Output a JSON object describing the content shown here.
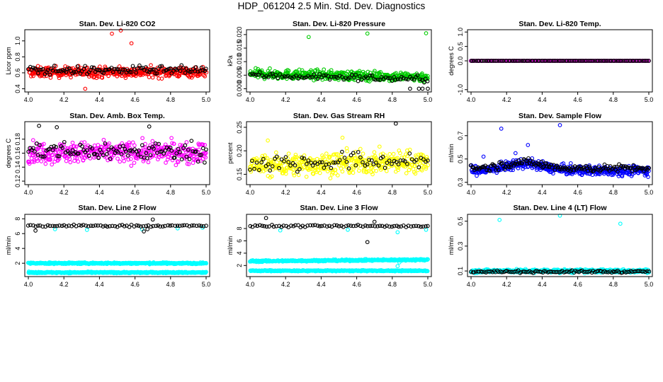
{
  "title": "HDP_061204  2.5 Min. Std. Dev. Diagnostics",
  "chart_data": [
    {
      "id": "co2",
      "type": "scatter",
      "title": "Stan. Dev. Li-820 CO2",
      "ylabel": "Licor ppm",
      "xlabel": "",
      "xlim": [
        3.98,
        5.02
      ],
      "ylim": [
        0.36,
        1.14
      ],
      "xticks": [
        4.0,
        4.2,
        4.4,
        4.6,
        4.8,
        5.0
      ],
      "xtick_labels": [
        "4.0",
        "4.2",
        "4.4",
        "4.6",
        "4.8",
        "5.0"
      ],
      "yticks": [
        0.4,
        0.6,
        0.8,
        1.0
      ],
      "ytick_labels": [
        "0.4",
        "0.6",
        "0.8",
        "1.0"
      ],
      "series": [
        {
          "name": "main",
          "color": "#ff0000",
          "n": 420,
          "base": 0.61,
          "slope": 0,
          "spread": 0.16,
          "outliers": [
            [
              4.47,
              1.09
            ],
            [
              4.52,
              1.13
            ],
            [
              4.58,
              0.97
            ],
            [
              4.32,
              0.4
            ]
          ]
        },
        {
          "name": "reference",
          "color": "#000000",
          "n": 110,
          "base": 0.63,
          "slope": 0,
          "spread": 0.13
        }
      ]
    },
    {
      "id": "pressure",
      "type": "scatter",
      "title": "Stan. Dev. Li-820 Pressure",
      "ylabel": "kPa",
      "xlabel": "",
      "xlim": [
        3.98,
        5.02
      ],
      "ylim": [
        -0.0012,
        0.0218
      ],
      "xticks": [
        4.0,
        4.2,
        4.4,
        4.6,
        4.8,
        5.0
      ],
      "xtick_labels": [
        "4.0",
        "4.2",
        "4.4",
        "4.6",
        "4.8",
        "5.0"
      ],
      "yticks": [
        0.0,
        0.005,
        0.01,
        0.015,
        0.02
      ],
      "ytick_labels": [
        "0.000",
        "0.005",
        "0.010",
        "0.015",
        "0.020"
      ],
      "series": [
        {
          "name": "main",
          "color": "#00cc00",
          "n": 440,
          "base": 0.0055,
          "slope": -0.0012,
          "spread": 0.0042,
          "outliers": [
            [
              4.33,
              0.0191
            ],
            [
              4.66,
              0.0204
            ],
            [
              4.99,
              0.0205
            ]
          ]
        },
        {
          "name": "reference",
          "color": "#000000",
          "n": 90,
          "base": 0.005,
          "slope": -0.0015,
          "spread": 0.003,
          "outliers": [
            [
              4.9,
              0.0
            ],
            [
              4.95,
              0.0
            ],
            [
              4.97,
              0.0
            ],
            [
              5.0,
              0.0
            ]
          ]
        }
      ]
    },
    {
      "id": "temp",
      "type": "scatter",
      "title": "Stan. Dev. Li-820 Temp.",
      "ylabel": "degrees C",
      "xlabel": "",
      "xlim": [
        3.98,
        5.02
      ],
      "ylim": [
        -1.08,
        1.08
      ],
      "xticks": [
        4.0,
        4.2,
        4.4,
        4.6,
        4.8,
        5.0
      ],
      "xtick_labels": [
        "4.0",
        "4.2",
        "4.4",
        "4.6",
        "4.8",
        "5.0"
      ],
      "yticks": [
        -1.0,
        0.0,
        0.5,
        1.0
      ],
      "ytick_labels": [
        "-1.0",
        "0.0",
        "0.5",
        "1.0"
      ],
      "series": [
        {
          "name": "main",
          "color": "#ff00ff",
          "n": 140,
          "base": 0.0,
          "slope": 0,
          "spread": 0.0
        },
        {
          "name": "reference",
          "color": "#000000",
          "n": 110,
          "base": 0.0,
          "slope": 0,
          "spread": 0.0
        }
      ]
    },
    {
      "id": "boxtemp",
      "type": "scatter",
      "title": "Stan. Dev. Amb. Box Temp.",
      "ylabel": "degrees C",
      "xlabel": "",
      "xlim": [
        3.98,
        5.02
      ],
      "ylim": [
        0.115,
        0.205
      ],
      "xticks": [
        4.0,
        4.2,
        4.4,
        4.6,
        4.8,
        5.0
      ],
      "xtick_labels": [
        "4.0",
        "4.2",
        "4.4",
        "4.6",
        "4.8",
        "5.0"
      ],
      "yticks": [
        0.12,
        0.14,
        0.16,
        0.18
      ],
      "ytick_labels": [
        "0.12",
        "0.14",
        "0.16",
        "0.18"
      ],
      "series": [
        {
          "name": "main",
          "color": "#ff00ff",
          "n": 420,
          "base": 0.161,
          "slope": 0,
          "spread": 0.036
        },
        {
          "name": "reference",
          "color": "#000000",
          "n": 110,
          "base": 0.163,
          "slope": 0,
          "spread": 0.032,
          "outliers": [
            [
              4.06,
              0.199
            ],
            [
              4.16,
              0.197
            ],
            [
              4.68,
              0.198
            ]
          ]
        }
      ]
    },
    {
      "id": "rh",
      "type": "scatter",
      "title": "Stan. Dev. Gas Stream RH",
      "ylabel": "percent",
      "xlabel": "",
      "xlim": [
        3.98,
        5.02
      ],
      "ylim": [
        0.128,
        0.262
      ],
      "xticks": [
        4.0,
        4.2,
        4.4,
        4.6,
        4.8,
        5.0
      ],
      "xtick_labels": [
        "4.0",
        "4.2",
        "4.4",
        "4.6",
        "4.8",
        "5.0"
      ],
      "yticks": [
        0.15,
        0.2,
        0.25
      ],
      "ytick_labels": [
        "0.15",
        "0.20",
        "0.25"
      ],
      "series": [
        {
          "name": "main",
          "color": "#ffff00",
          "n": 430,
          "base": 0.168,
          "slope": 0.01,
          "spread": 0.058,
          "outliers": [
            [
              4.1,
              0.222
            ],
            [
              4.52,
              0.228
            ]
          ]
        },
        {
          "name": "reference",
          "color": "#000000",
          "n": 80,
          "base": 0.172,
          "slope": 0.008,
          "spread": 0.048,
          "outliers": [
            [
              4.82,
              0.258
            ]
          ]
        }
      ]
    },
    {
      "id": "sampleflow",
      "type": "scatter",
      "title": "Stan. Dev. Sample Flow",
      "ylabel": "ml/min",
      "xlabel": "",
      "xlim": [
        3.98,
        5.02
      ],
      "ylim": [
        0.28,
        0.82
      ],
      "xticks": [
        4.0,
        4.2,
        4.4,
        4.6,
        4.8,
        5.0
      ],
      "xtick_labels": [
        "4.0",
        "4.2",
        "4.4",
        "4.6",
        "4.8",
        "5.0"
      ],
      "yticks": [
        0.3,
        0.5,
        0.7
      ],
      "ytick_labels": [
        "0.3",
        "0.5",
        "0.7"
      ],
      "series": [
        {
          "name": "main",
          "color": "#0000ff",
          "n": 480,
          "base": 0.4,
          "slope": 0,
          "spread": 0.1,
          "bump": 0.06,
          "outliers": [
            [
              4.17,
              0.76
            ],
            [
              4.32,
              0.62
            ],
            [
              4.5,
              0.79
            ],
            [
              4.07,
              0.52
            ],
            [
              4.25,
              0.55
            ]
          ]
        },
        {
          "name": "reference",
          "color": "#000000",
          "n": 150,
          "base": 0.42,
          "slope": 0,
          "spread": 0.08,
          "bump": 0.05
        }
      ]
    },
    {
      "id": "line2",
      "type": "scatter",
      "title": "Stan. Dev. Line 2 Flow",
      "ylabel": "ml/min",
      "xlabel": "",
      "xlim": [
        3.98,
        5.02
      ],
      "ylim": [
        0.2,
        8.6
      ],
      "xticks": [
        4.0,
        4.2,
        4.4,
        4.6,
        4.8,
        5.0
      ],
      "xtick_labels": [
        "4.0",
        "4.2",
        "4.4",
        "4.6",
        "4.8",
        "5.0"
      ],
      "yticks": [
        2,
        4,
        6,
        8
      ],
      "ytick_labels": [
        "2",
        "4",
        "6",
        "8"
      ],
      "series": [
        {
          "name": "main-upper",
          "color": "#00ffff",
          "n": 450,
          "base": 2.0,
          "slope": 0,
          "spread": 0.25
        },
        {
          "name": "main-lower",
          "color": "#00ffff",
          "n": 450,
          "base": 0.75,
          "slope": 0,
          "spread": 0.22,
          "outliers": [
            [
              4.15,
              6.6
            ],
            [
              4.33,
              6.5
            ],
            [
              4.64,
              6.6
            ],
            [
              4.84,
              6.7
            ],
            [
              4.98,
              6.8
            ]
          ]
        },
        {
          "name": "reference",
          "color": "#000000",
          "n": 75,
          "base": 7.05,
          "slope": 0,
          "spread": 0.35,
          "outliers": [
            [
              4.04,
              6.4
            ],
            [
              4.65,
              6.3
            ],
            [
              4.67,
              6.6
            ],
            [
              4.7,
              7.9
            ]
          ]
        }
      ]
    },
    {
      "id": "line3",
      "type": "scatter",
      "title": "Stan. Dev. Line 3 Flow",
      "ylabel": "ml/min",
      "xlabel": "",
      "xlim": [
        3.98,
        5.02
      ],
      "ylim": [
        0.2,
        10.3
      ],
      "xticks": [
        4.0,
        4.2,
        4.4,
        4.6,
        4.8,
        5.0
      ],
      "xtick_labels": [
        "4.0",
        "4.2",
        "4.4",
        "4.6",
        "4.8",
        "5.0"
      ],
      "yticks": [
        2,
        4,
        6,
        8
      ],
      "ytick_labels": [
        "2",
        "4",
        "6",
        "8"
      ],
      "series": [
        {
          "name": "main-upper",
          "color": "#00ffff",
          "n": 450,
          "base": 2.7,
          "slope": 0.25,
          "spread": 0.32
        },
        {
          "name": "main-lower",
          "color": "#00ffff",
          "n": 450,
          "base": 1.15,
          "slope": 0,
          "spread": 0.22,
          "outliers": [
            [
              4.17,
              7.7
            ],
            [
              4.55,
              7.8
            ],
            [
              4.83,
              7.4
            ],
            [
              4.99,
              7.8
            ],
            [
              4.83,
              1.9
            ],
            [
              4.84,
              2.5
            ]
          ]
        },
        {
          "name": "reference",
          "color": "#000000",
          "n": 75,
          "base": 8.4,
          "slope": 0,
          "spread": 0.45,
          "outliers": [
            [
              4.09,
              9.7
            ],
            [
              4.66,
              5.8
            ],
            [
              4.7,
              9.1
            ]
          ]
        }
      ]
    },
    {
      "id": "line4",
      "type": "scatter",
      "title": "Stan. Dev. Line 4 (LT) Flow",
      "ylabel": "ml/min",
      "xlabel": "",
      "xlim": [
        3.98,
        5.02
      ],
      "ylim": [
        0.055,
        0.555
      ],
      "xticks": [
        4.0,
        4.2,
        4.4,
        4.6,
        4.8,
        5.0
      ],
      "xtick_labels": [
        "4.0",
        "4.2",
        "4.4",
        "4.6",
        "4.8",
        "5.0"
      ],
      "yticks": [
        0.1,
        0.3,
        0.5
      ],
      "ytick_labels": [
        "0.1",
        "0.3",
        "0.5"
      ],
      "series": [
        {
          "name": "main",
          "color": "#00ffff",
          "n": 420,
          "base": 0.1,
          "slope": 0,
          "spread": 0.035,
          "outliers": [
            [
              4.16,
              0.51
            ],
            [
              4.5,
              0.545
            ],
            [
              4.84,
              0.48
            ]
          ]
        },
        {
          "name": "reference",
          "color": "#000000",
          "n": 110,
          "base": 0.095,
          "slope": 0,
          "spread": 0.022
        }
      ]
    }
  ]
}
